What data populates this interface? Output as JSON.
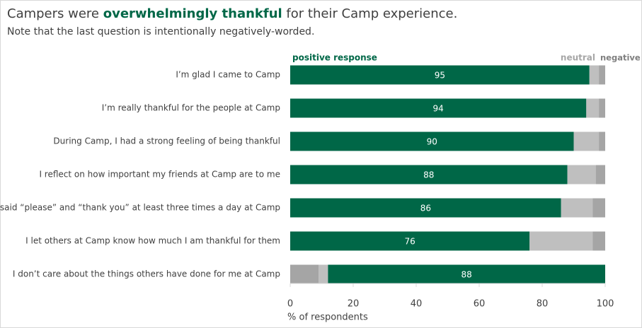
{
  "chart_data": {
    "type": "stacked_barh",
    "title_parts": [
      "Campers were ",
      "overwhelmingly thankful",
      " for their Camp experience."
    ],
    "subtitle": "Note that the last question is intentionally negatively-worded.",
    "x_label": "% of respondents",
    "categories": [
      "I’m glad I came to Camp",
      "I’m really thankful for the people at Camp",
      "During Camp, I had a strong feeling of being thankful",
      "I reflect on how important my friends at Camp are to me",
      "I said “please” and “thank you” at least three times a day at Camp",
      "I let others at Camp know how much I am thankful for them",
      "I don’t care about the things others have done for me at Camp"
    ],
    "reversed": [
      false,
      false,
      false,
      false,
      false,
      false,
      true
    ],
    "series": [
      {
        "name": "positive response",
        "color": "#006747",
        "label_color": "#006747",
        "values": [
          95,
          94,
          90,
          88,
          86,
          76,
          88
        ]
      },
      {
        "name": "neutral",
        "color": "#bfbfbf",
        "label_color": "#a6a6a6",
        "values": [
          3,
          4,
          8,
          9,
          10,
          20,
          3
        ]
      },
      {
        "name": "negative",
        "color": "#a5a5a5",
        "label_color": "#7f7f7f",
        "values": [
          2,
          2,
          2,
          3,
          4,
          4,
          9
        ]
      }
    ],
    "xlim": [
      0,
      100
    ],
    "xticks": [
      0,
      20,
      40,
      60,
      80,
      100
    ],
    "grid": false
  }
}
